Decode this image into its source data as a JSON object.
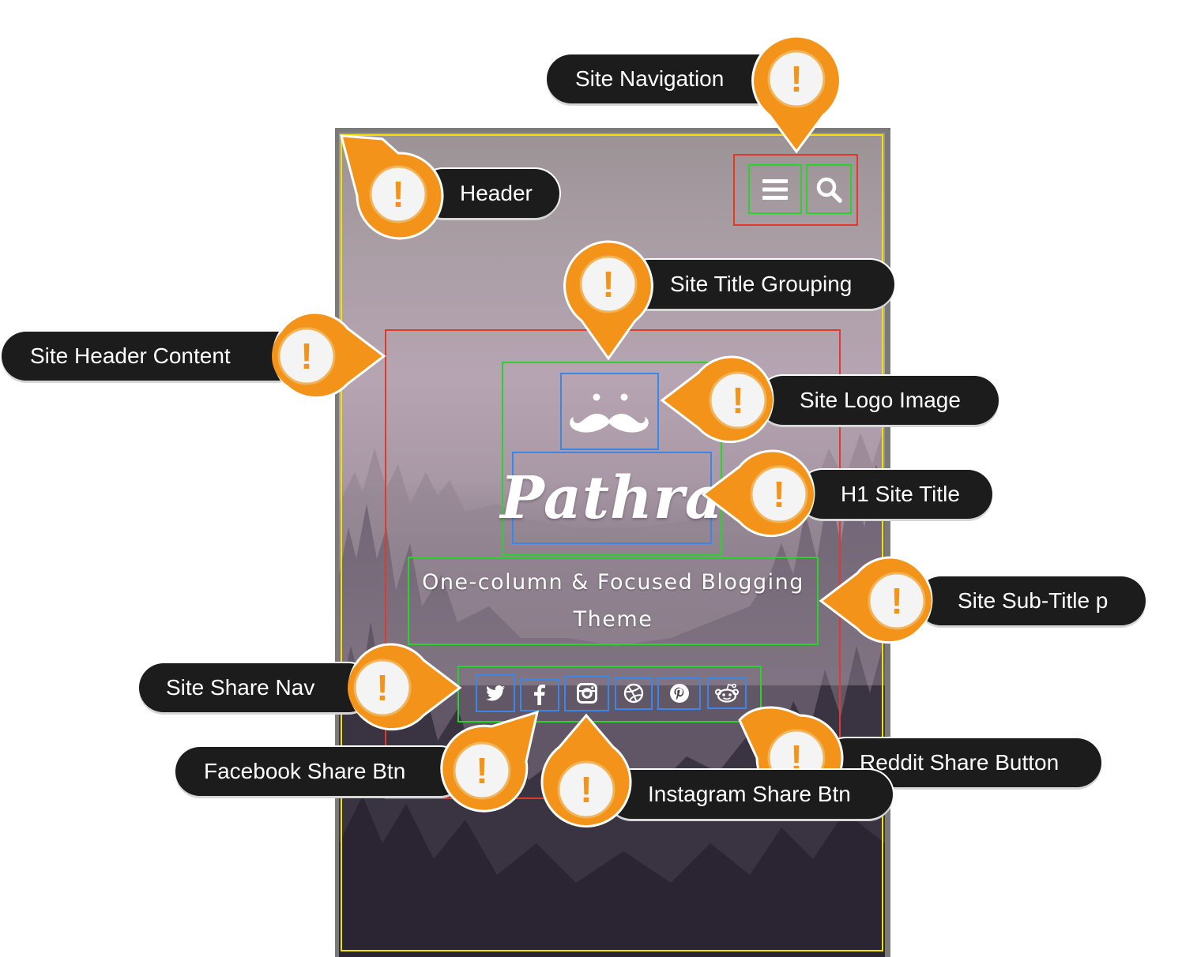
{
  "site": {
    "title": "Pathra",
    "subtitle": "One-column & Focused Blogging Theme"
  },
  "icons": {
    "menu": "hamburger-menu-icon",
    "search": "search-icon",
    "logo": "mustache-icon",
    "share": [
      "twitter-icon",
      "facebook-icon",
      "instagram-icon",
      "dribbble-icon",
      "pinterest-icon",
      "reddit-icon"
    ]
  },
  "annotations": {
    "site_navigation": "Site Navigation",
    "header": "Header",
    "site_title_grouping": "Site Title Grouping",
    "site_header_content": "Site Header Content",
    "site_logo_image": "Site Logo Image",
    "h1_site_title": "H1 Site Title",
    "site_subtitle_p": "Site Sub-Title p",
    "site_share_nav": "Site Share Nav",
    "facebook_share_btn": "Facebook Share Btn",
    "reddit_share_button": "Reddit Share Button",
    "instagram_share_btn": "Instagram Share Btn",
    "marker_symbol": "!"
  },
  "colors": {
    "callout_orange": "#f39319",
    "callout_dark": "#1c1c1c",
    "outline_red": "#e23a2a",
    "outline_green": "#2dd12d",
    "outline_blue": "#3b86e6",
    "outline_yellow": "#f2e200"
  }
}
